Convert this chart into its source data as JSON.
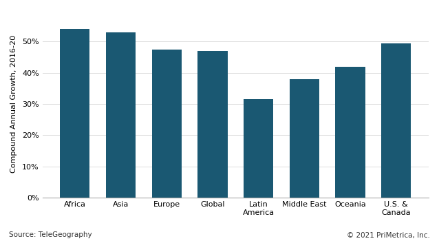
{
  "categories": [
    "Africa",
    "Asia",
    "Europe",
    "Global",
    "Latin\nAmerica",
    "Middle East",
    "Oceania",
    "U.S. &\nCanada"
  ],
  "values": [
    0.54,
    0.53,
    0.475,
    0.47,
    0.315,
    0.38,
    0.42,
    0.495
  ],
  "bar_color": "#1a5872",
  "ylabel": "Compound Annual Growth, 2016-20",
  "ylim": [
    0,
    0.6
  ],
  "yticks": [
    0.0,
    0.1,
    0.2,
    0.3,
    0.4,
    0.5
  ],
  "ytick_labels": [
    "0%",
    "10%",
    "20%",
    "30%",
    "40%",
    "50%"
  ],
  "source_text": "Source: TeleGeography",
  "copyright_text": "© 2021 PriMetrica, Inc.",
  "background_color": "#ffffff",
  "grid_color": "#dddddd"
}
